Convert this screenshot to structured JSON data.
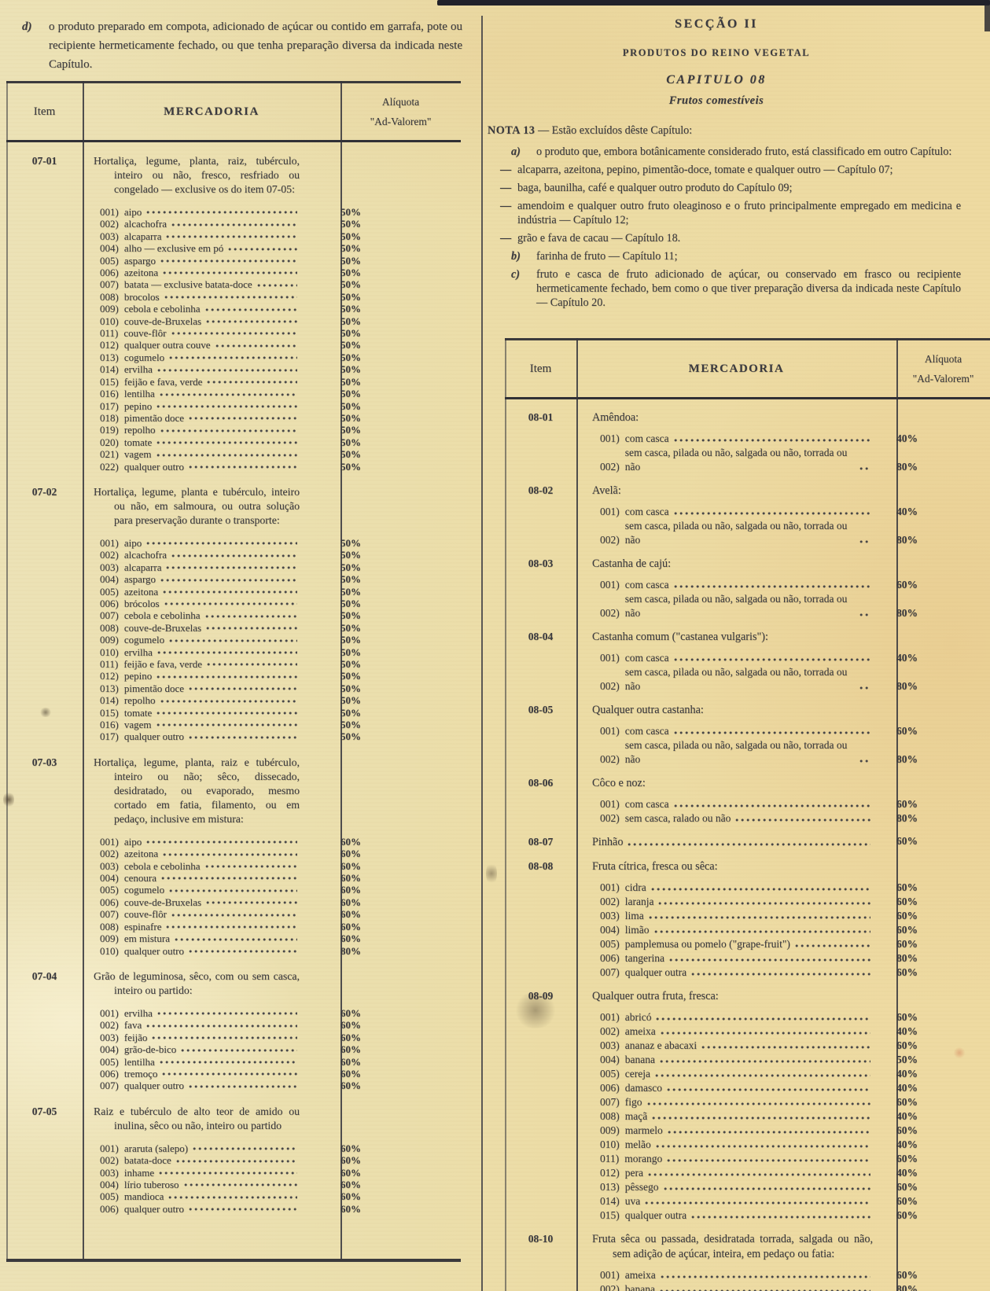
{
  "colors": {
    "paper": "#ebdfad",
    "ink": "#33333b",
    "rule": "#28282f"
  },
  "left_column": {
    "intro": {
      "label": "d)",
      "text": "o produto preparado em compota, adicionado de açúcar ou contido em garrafa, pote ou recipiente hermeticamente fechado, ou que tenha preparação diversa da indicada neste Capítulo."
    },
    "table": {
      "header": {
        "item": "Item",
        "mercadoria": "MERCADORIA",
        "aliquota": "Alíquota",
        "ad_valorem": "\"Ad-Valorem\""
      },
      "sections": [
        {
          "code": "07-01",
          "description": "Hortaliça, legume, planta, raiz, tubérculo, inteiro ou não, fresco, resfriado ou congelado — exclusive os do item 07-05:",
          "items": [
            [
              "001)",
              "aipo",
              "50%"
            ],
            [
              "002)",
              "alcachofra",
              "50%"
            ],
            [
              "003)",
              "alcaparra",
              "50%"
            ],
            [
              "004)",
              "alho — exclusive em pó",
              "50%"
            ],
            [
              "005)",
              "aspargo",
              "50%"
            ],
            [
              "006)",
              "azeitona",
              "50%"
            ],
            [
              "007)",
              "batata — exclusive batata-doce",
              "50%"
            ],
            [
              "008)",
              "brocolos",
              "50%"
            ],
            [
              "009)",
              "cebola e cebolinha",
              "50%"
            ],
            [
              "010)",
              "couve-de-Bruxelas",
              "50%"
            ],
            [
              "011)",
              "couve-flôr",
              "50%"
            ],
            [
              "012)",
              "qualquer outra couve",
              "50%"
            ],
            [
              "013)",
              "cogumelo",
              "50%"
            ],
            [
              "014)",
              "ervilha",
              "50%"
            ],
            [
              "015)",
              "feijão e fava, verde",
              "50%"
            ],
            [
              "016)",
              "lentilha",
              "50%"
            ],
            [
              "017)",
              "pepino",
              "50%"
            ],
            [
              "018)",
              "pimentão doce",
              "50%"
            ],
            [
              "019)",
              "repolho",
              "50%"
            ],
            [
              "020)",
              "tomate",
              "50%"
            ],
            [
              "021)",
              "vagem",
              "50%"
            ],
            [
              "022)",
              "qualquer outro",
              "50%"
            ]
          ]
        },
        {
          "code": "07-02",
          "description": "Hortaliça, legume, planta e tubérculo, inteiro ou não, em salmoura, ou outra solução para preservação durante o transporte:",
          "items": [
            [
              "001)",
              "aipo",
              "50%"
            ],
            [
              "002)",
              "alcachofra",
              "50%"
            ],
            [
              "003)",
              "alcaparra",
              "50%"
            ],
            [
              "004)",
              "aspargo",
              "50%"
            ],
            [
              "005)",
              "azeitona",
              "50%"
            ],
            [
              "006)",
              "brócolos",
              "50%"
            ],
            [
              "007)",
              "cebola e cebolinha",
              "50%"
            ],
            [
              "008)",
              "couve-de-Bruxelas",
              "50%"
            ],
            [
              "009)",
              "cogumelo",
              "50%"
            ],
            [
              "010)",
              "ervilha",
              "50%"
            ],
            [
              "011)",
              "feijão e fava, verde",
              "50%"
            ],
            [
              "012)",
              "pepino",
              "50%"
            ],
            [
              "013)",
              "pimentão doce",
              "50%"
            ],
            [
              "014)",
              "repolho",
              "50%"
            ],
            [
              "015)",
              "tomate",
              "50%"
            ],
            [
              "016)",
              "vagem",
              "50%"
            ],
            [
              "017)",
              "qualquer outro",
              "50%"
            ]
          ]
        },
        {
          "code": "07-03",
          "description": "Hortaliça, legume, planta, raiz e tubérculo, inteiro ou não; sêco, dissecado, desidratado, ou evaporado, mesmo cortado em fatia, filamento, ou em pedaço, inclusive em mistura:",
          "items": [
            [
              "001)",
              "aipo",
              "60%"
            ],
            [
              "002)",
              "azeitona",
              "60%"
            ],
            [
              "003)",
              "cebola e cebolinha",
              "60%"
            ],
            [
              "004)",
              "cenoura",
              "60%"
            ],
            [
              "005)",
              "cogumelo",
              "60%"
            ],
            [
              "006)",
              "couve-de-Bruxelas",
              "60%"
            ],
            [
              "007)",
              "couve-flôr",
              "60%"
            ],
            [
              "008)",
              "espinafre",
              "60%"
            ],
            [
              "009)",
              "em mistura",
              "60%"
            ],
            [
              "010)",
              "qualquer outro",
              "80%"
            ]
          ]
        },
        {
          "code": "07-04",
          "description": "Grão de leguminosa, sêco, com ou sem casca, inteiro ou partido:",
          "items": [
            [
              "001)",
              "ervilha",
              "60%"
            ],
            [
              "002)",
              "fava",
              "60%"
            ],
            [
              "003)",
              "feijão",
              "60%"
            ],
            [
              "004)",
              "grão-de-bico",
              "60%"
            ],
            [
              "005)",
              "lentilha",
              "60%"
            ],
            [
              "006)",
              "tremoço",
              "60%"
            ],
            [
              "007)",
              "qualquer outro",
              "60%"
            ]
          ]
        },
        {
          "code": "07-05",
          "description": "Raiz e tubérculo de alto teor de amido ou inulina, sêco ou não, inteiro ou partido",
          "items": [
            [
              "001)",
              "araruta (salepo)",
              "60%"
            ],
            [
              "002)",
              "batata-doce",
              "60%"
            ],
            [
              "003)",
              "inhame",
              "60%"
            ],
            [
              "004)",
              "lírio tuberoso",
              "60%"
            ],
            [
              "005)",
              "mandioca",
              "60%"
            ],
            [
              "006)",
              "qualquer outro",
              "60%"
            ]
          ]
        }
      ]
    }
  },
  "right_column": {
    "headings": {
      "section": "SECÇÃO II",
      "subtitle": "PRODUTOS DO REINO VEGETAL",
      "chapter": "CAPITULO 08",
      "chapter_subtitle": "Frutos comestíveis"
    },
    "nota": {
      "label": "NOTA 13",
      "title_rest": " — Estão excluídos dêste Capítulo:",
      "items": [
        {
          "label": "a)",
          "text": "o produto que, embora botânicamente considerado fruto, está classificado em outro Capítulo:"
        },
        {
          "label": "—",
          "text": "alcaparra, azeitona, pepino, pimentão-doce, tomate e qualquer outro — Capítulo 07;"
        },
        {
          "label": "—",
          "text": "baga, baunilha, café e qualquer outro produto do Capítulo 09;"
        },
        {
          "label": "—",
          "text": "amendoim e qualquer outro fruto oleaginoso e o fruto principalmente empregado em medicina e indústria — Capítulo 12;"
        },
        {
          "label": "—",
          "text": "grão e fava de cacau — Capítulo 18."
        },
        {
          "label": "b)",
          "text": "farinha de fruto — Capítulo 11;"
        },
        {
          "label": "c)",
          "text": "fruto e casca de fruto adicionado de açúcar, ou conservado em frasco ou recipiente hermeticamente fechado, bem como o que tiver preparação diversa da indicada neste Capítulo — Capítulo 20."
        }
      ]
    },
    "table": {
      "header": {
        "item": "Item",
        "mercadoria": "MERCADORIA",
        "aliquota": "Alíquota",
        "ad_valorem": "\"Ad-Valorem\""
      },
      "sections": [
        {
          "code": "08-01",
          "description": "Amêndoa:",
          "items": [
            [
              "001)",
              "com casca",
              "40%"
            ],
            [
              "002)",
              "sem casca, pilada ou não, salgada ou não, torrada ou não",
              "80%"
            ]
          ]
        },
        {
          "code": "08-02",
          "description": "Avelã:",
          "items": [
            [
              "001)",
              "com casca",
              "40%"
            ],
            [
              "002)",
              "sem casca, pilada ou não, salgada ou não, torrada ou não",
              "80%"
            ]
          ]
        },
        {
          "code": "08-03",
          "description": "Castanha de cajú:",
          "items": [
            [
              "001)",
              "com casca",
              "60%"
            ],
            [
              "002)",
              "sem casca, pilada ou não, salgada ou não, torrada ou não",
              "80%"
            ]
          ]
        },
        {
          "code": "08-04",
          "description": "Castanha comum (\"castanea vulgaris\"):",
          "items": [
            [
              "001)",
              "com casca",
              "40%"
            ],
            [
              "002)",
              "sem casca, pilada ou não, salgada ou não, torrada ou não",
              "80%"
            ]
          ]
        },
        {
          "code": "08-05",
          "description": "Qualquer outra castanha:",
          "items": [
            [
              "001)",
              "com casca",
              "60%"
            ],
            [
              "002)",
              "sem casca, pilada ou não, salgada ou não, torrada ou não",
              "80%"
            ]
          ]
        },
        {
          "code": "08-06",
          "description": "Côco e noz:",
          "items": [
            [
              "001)",
              "com casca",
              "60%"
            ],
            [
              "002)",
              "sem casca, ralado ou não",
              "80%"
            ]
          ]
        },
        {
          "code": "08-07",
          "description": "Pinhão",
          "rate": "60%",
          "items": []
        },
        {
          "code": "08-08",
          "description": "Fruta cítrica, fresca ou sêca:",
          "tight": true,
          "items": [
            [
              "001)",
              "cidra",
              "60%"
            ],
            [
              "002)",
              "laranja",
              "60%"
            ],
            [
              "003)",
              "lima",
              "60%"
            ],
            [
              "004)",
              "limão",
              "60%"
            ],
            [
              "005)",
              "pamplemusa ou pomelo (\"grape-fruit\")",
              "60%"
            ],
            [
              "006)",
              "tangerina",
              "80%"
            ],
            [
              "007)",
              "qualquer outra",
              "60%"
            ]
          ]
        },
        {
          "code": "08-09",
          "description": "Qualquer outra fruta, fresca:",
          "items": [
            [
              "001)",
              "abricó",
              "60%"
            ],
            [
              "002)",
              "ameixa",
              "40%"
            ],
            [
              "003)",
              "ananaz e abacaxi",
              "60%"
            ],
            [
              "004)",
              "banana",
              "50%"
            ],
            [
              "005)",
              "cereja",
              "40%"
            ],
            [
              "006)",
              "damasco",
              "40%"
            ],
            [
              "007)",
              "figo",
              "60%"
            ],
            [
              "008)",
              "maçã",
              "40%"
            ],
            [
              "009)",
              "marmelo",
              "60%"
            ],
            [
              "010)",
              "melão",
              "40%"
            ],
            [
              "011)",
              "morango",
              "60%"
            ],
            [
              "012)",
              "pera",
              "40%"
            ],
            [
              "013)",
              "pêssego",
              "60%"
            ],
            [
              "014)",
              "uva",
              "60%"
            ],
            [
              "015)",
              "qualquer outra",
              "60%"
            ]
          ]
        },
        {
          "code": "08-10",
          "description": "Fruta sêca ou passada, desidratada torrada, salgada ou não, sem adição de açúcar, inteira, em pedaço ou fatia:",
          "items": [
            [
              "001)",
              "ameixa",
              "60%"
            ],
            [
              "002)",
              "banana",
              "80%"
            ]
          ]
        }
      ]
    }
  }
}
